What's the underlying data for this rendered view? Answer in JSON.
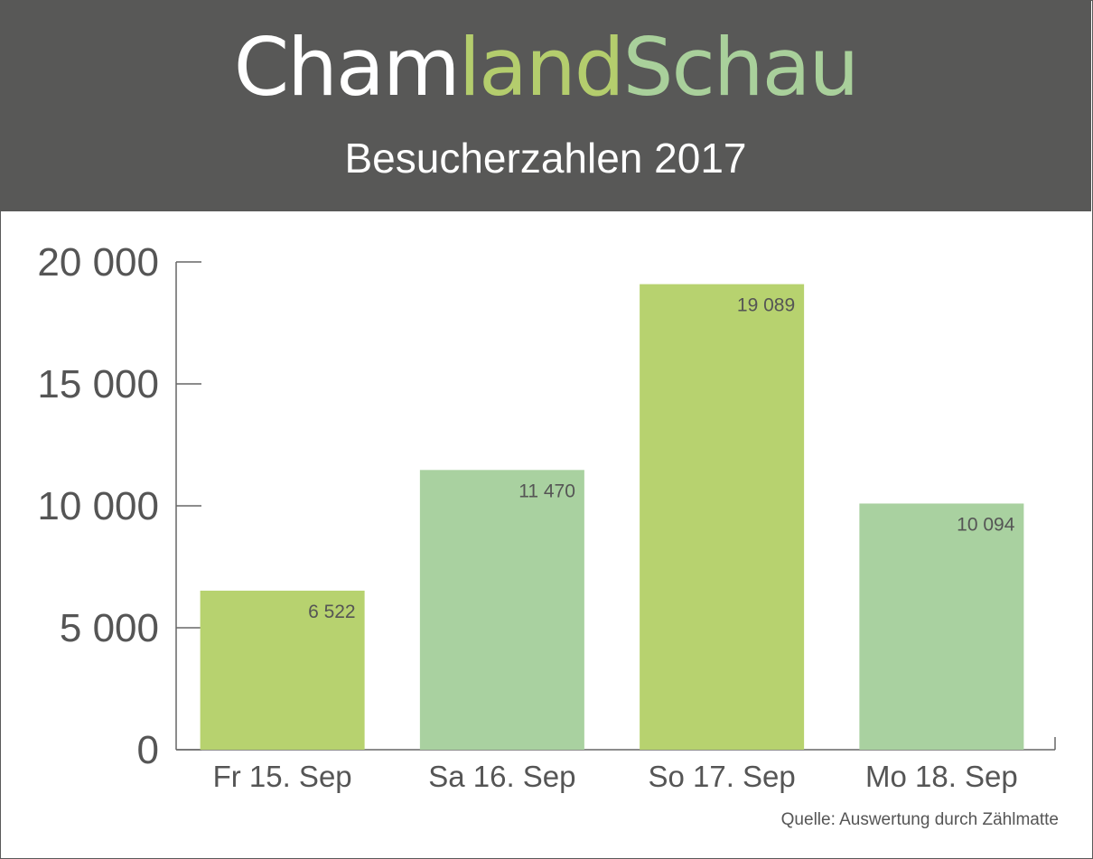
{
  "header": {
    "logo": {
      "part1": "Cham",
      "part2": "land",
      "part3": "Schau",
      "colors": [
        "#ffffff",
        "#b4cd6d",
        "#a9d09b"
      ]
    },
    "subtitle": "Besucherzahlen 2017"
  },
  "source": "Quelle: Auswertung durch Zählmatte",
  "colors": {
    "header_bg": "#585857",
    "bar_light_green": "#b7d26f",
    "bar_sage_green": "#a9d1a0",
    "axis": "#666666",
    "text": "#555555"
  },
  "chart_data": {
    "type": "bar",
    "title": "Besucherzahlen 2017",
    "categories": [
      "Fr 15. Sep",
      "Sa 16. Sep",
      "So 17. Sep",
      "Mo 18. Sep"
    ],
    "values": [
      6522,
      11470,
      19089,
      10094
    ],
    "value_labels": [
      "6 522",
      "11 470",
      "19 089",
      "10 094"
    ],
    "bar_colors": [
      "#b7d26f",
      "#a9d1a0",
      "#b7d26f",
      "#a9d1a0"
    ],
    "ylim": [
      0,
      20000
    ],
    "yticks": [
      0,
      5000,
      10000,
      15000,
      20000
    ],
    "ytick_labels": [
      "0",
      "5 000",
      "10 000",
      "15 000",
      "20 000"
    ],
    "xlabel": "",
    "ylabel": "",
    "grid": false,
    "legend": "none"
  }
}
